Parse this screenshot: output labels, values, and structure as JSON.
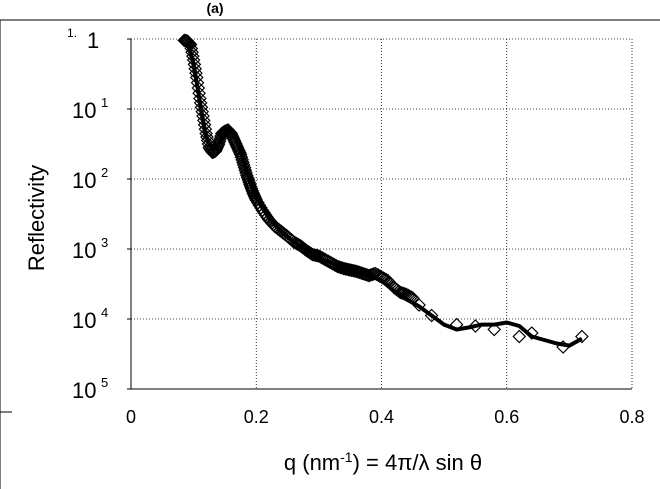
{
  "chart_data": {
    "type": "scatter",
    "title": "",
    "panel_label": "(a)",
    "xlabel_parts": {
      "pre": "q (nm",
      "sup": "-1",
      "post": ") = 4π/λ sin θ"
    },
    "ylabel": "Reflectivity",
    "xlim": [
      0,
      0.8
    ],
    "ylim_log10": [
      -5,
      0
    ],
    "grid": true,
    "grid_style": "dotted",
    "x_ticks": [
      "0",
      "0.2",
      "0.4",
      "0.6",
      "0.8"
    ],
    "y_ticks": [
      {
        "value": 0,
        "base": "1",
        "exp": "",
        "prefix": "1."
      },
      {
        "value": -1,
        "base": "10",
        "exp": "1",
        "prefix": ""
      },
      {
        "value": -2,
        "base": "10",
        "exp": "2",
        "prefix": ""
      },
      {
        "value": -3,
        "base": "10",
        "exp": "3",
        "prefix": ""
      },
      {
        "value": -4,
        "base": "10",
        "exp": "4",
        "prefix": ""
      },
      {
        "value": -5,
        "base": "10",
        "exp": "5",
        "prefix": ""
      }
    ],
    "series": [
      {
        "kind": "markers",
        "marker": "diamond-open",
        "x": [
          0.085,
          0.09,
          0.095,
          0.1,
          0.105,
          0.11,
          0.115,
          0.12,
          0.125,
          0.13,
          0.135,
          0.14,
          0.145,
          0.15,
          0.155,
          0.16,
          0.165,
          0.17,
          0.175,
          0.18,
          0.185,
          0.19,
          0.195,
          0.2,
          0.21,
          0.22,
          0.23,
          0.24,
          0.25,
          0.26,
          0.27,
          0.28,
          0.29,
          0.3,
          0.31,
          0.32,
          0.33,
          0.34,
          0.35,
          0.36,
          0.37,
          0.38,
          0.39,
          0.4,
          0.41,
          0.42,
          0.43,
          0.44,
          0.45,
          0.46,
          0.48,
          0.52,
          0.55,
          0.58,
          0.62,
          0.64,
          0.69,
          0.72
        ],
        "log10y": [
          -0.02,
          -0.03,
          -0.08,
          -0.3,
          -0.55,
          -0.85,
          -1.1,
          -1.35,
          -1.55,
          -1.62,
          -1.6,
          -1.5,
          -1.35,
          -1.32,
          -1.3,
          -1.35,
          -1.45,
          -1.55,
          -1.65,
          -1.8,
          -1.95,
          -2.08,
          -2.2,
          -2.3,
          -2.45,
          -2.58,
          -2.68,
          -2.75,
          -2.82,
          -2.9,
          -2.95,
          -3.02,
          -3.08,
          -3.1,
          -3.15,
          -3.2,
          -3.25,
          -3.28,
          -3.3,
          -3.32,
          -3.35,
          -3.38,
          -3.35,
          -3.4,
          -3.45,
          -3.55,
          -3.62,
          -3.65,
          -3.7,
          -3.8,
          -3.95,
          -4.08,
          -4.1,
          -4.15,
          -4.25,
          -4.2,
          -4.4,
          -4.25
        ]
      },
      {
        "kind": "line",
        "x": [
          0.09,
          0.1,
          0.11,
          0.12,
          0.13,
          0.14,
          0.15,
          0.16,
          0.17,
          0.18,
          0.19,
          0.2,
          0.22,
          0.24,
          0.26,
          0.28,
          0.3,
          0.32,
          0.34,
          0.36,
          0.38,
          0.4,
          0.42,
          0.44,
          0.46,
          0.48,
          0.5,
          0.52,
          0.54,
          0.56,
          0.58,
          0.6,
          0.62,
          0.64,
          0.66,
          0.68,
          0.7,
          0.72
        ],
        "log10y": [
          -0.05,
          -0.35,
          -0.9,
          -1.4,
          -1.58,
          -1.5,
          -1.35,
          -1.3,
          -1.48,
          -1.75,
          -2.05,
          -2.28,
          -2.55,
          -2.75,
          -2.9,
          -3.02,
          -3.12,
          -3.2,
          -3.28,
          -3.33,
          -3.37,
          -3.45,
          -3.6,
          -3.72,
          -3.82,
          -3.95,
          -4.08,
          -4.15,
          -4.12,
          -4.08,
          -4.08,
          -4.05,
          -4.1,
          -4.25,
          -4.3,
          -4.35,
          -4.38,
          -4.28
        ]
      }
    ]
  }
}
